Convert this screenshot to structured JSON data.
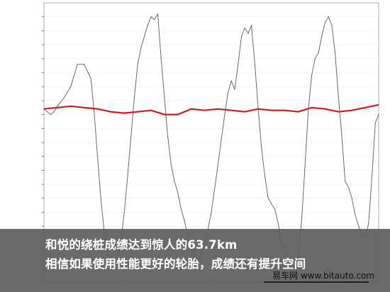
{
  "colors": {
    "speed_line": "#d11a1a",
    "steering_line": "#6a6a6a",
    "axis_text": "#cc2222",
    "grid": "#d8d8d8",
    "caption_bg": "#5f5f5f"
  },
  "caption": {
    "line1": "和悦的绕桩成绩达到惊人的63.7km",
    "line2": "相信如果使用性能更好的轮胎，成绩还有提升空间"
  },
  "watermark": "易车网 www.bitauto.com",
  "chart_data": {
    "type": "line",
    "title": "",
    "xlabel": "",
    "ylabel": "",
    "grid": true,
    "xlim": [
      0,
      100
    ],
    "ylim": [
      0,
      100
    ],
    "series": [
      {
        "x": [
          0,
          1,
          2,
          3,
          4,
          6,
          8,
          10,
          12,
          14,
          15,
          16,
          17,
          18,
          19,
          20,
          21,
          22,
          23,
          24,
          25,
          26,
          27,
          28,
          29,
          30,
          31,
          32,
          33,
          34,
          35,
          36,
          37,
          38,
          39,
          40,
          41,
          42,
          43,
          44,
          45,
          46,
          48,
          50,
          52,
          54,
          55,
          56,
          57,
          58,
          59,
          60,
          61,
          62,
          63,
          64,
          65,
          66,
          67,
          68,
          69,
          70,
          71,
          72,
          73,
          74,
          75,
          76,
          77,
          78,
          79,
          80,
          81,
          82,
          83,
          84,
          85,
          86,
          87,
          88,
          89,
          90,
          91,
          92,
          93,
          94,
          95,
          96,
          97,
          98,
          99,
          100
        ],
        "values": [
          62,
          61,
          60,
          61,
          63,
          66,
          70,
          78,
          78,
          73,
          61,
          45,
          30,
          18,
          10,
          7,
          6,
          8,
          15,
          25,
          38,
          52,
          66,
          78,
          84,
          88,
          92,
          95,
          94,
          96,
          80,
          66,
          52,
          42,
          36,
          32,
          26,
          22,
          16,
          12,
          9,
          8,
          13,
          25,
          42,
          60,
          68,
          72,
          69,
          78,
          88,
          91,
          89,
          92,
          78,
          62,
          48,
          38,
          30,
          28,
          26,
          21,
          14,
          12,
          8,
          6,
          6,
          9,
          22,
          42,
          62,
          74,
          80,
          82,
          88,
          93,
          95,
          92,
          82,
          66,
          52,
          36,
          34,
          30,
          24,
          20,
          17,
          16,
          21,
          38,
          57,
          60
        ]
      },
      {
        "x": [
          0,
          4,
          8,
          12,
          16,
          20,
          24,
          28,
          32,
          36,
          40,
          44,
          48,
          52,
          56,
          60,
          64,
          68,
          72,
          76,
          80,
          84,
          88,
          92,
          96,
          100
        ],
        "values": [
          62,
          62.5,
          63,
          62.5,
          62,
          61,
          60.5,
          61,
          61.5,
          60,
          60,
          62,
          61.5,
          62,
          61.5,
          61,
          62,
          61.5,
          61.5,
          61,
          62.5,
          62,
          61,
          61.5,
          62.5,
          63.5
        ]
      }
    ]
  }
}
